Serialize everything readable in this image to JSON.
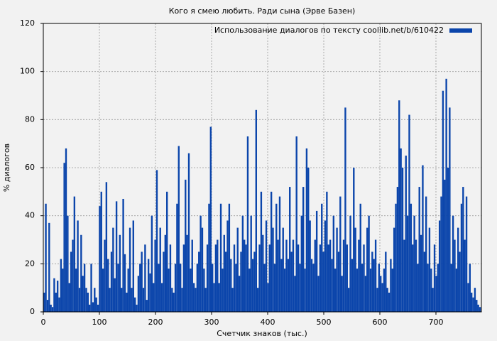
{
  "chart_data": {
    "type": "bar",
    "title": "Кого я смею любить. Ради сына (Эрве Базен)",
    "xlabel": "Счетчик знаков (тыс.)",
    "ylabel": "% диалогов",
    "xlim": [
      0,
      781
    ],
    "ylim": [
      0,
      120
    ],
    "xticks": [
      0,
      100,
      200,
      300,
      400,
      500,
      600,
      700
    ],
    "yticks": [
      0,
      20,
      40,
      60,
      80,
      100,
      120
    ],
    "grid": true,
    "legend": "upper right",
    "x": [
      0,
      3,
      6,
      9,
      12,
      15,
      18,
      21,
      24,
      27,
      30,
      33,
      36,
      39,
      42,
      45,
      48,
      51,
      54,
      57,
      60,
      63,
      66,
      69,
      72,
      75,
      78,
      81,
      84,
      87,
      90,
      93,
      96,
      99,
      102,
      105,
      108,
      111,
      114,
      117,
      120,
      123,
      126,
      129,
      132,
      135,
      138,
      141,
      144,
      147,
      150,
      153,
      156,
      159,
      162,
      165,
      168,
      171,
      174,
      177,
      180,
      183,
      186,
      189,
      192,
      195,
      198,
      201,
      204,
      207,
      210,
      213,
      216,
      219,
      222,
      225,
      228,
      231,
      234,
      237,
      240,
      243,
      246,
      249,
      252,
      255,
      258,
      261,
      264,
      267,
      270,
      273,
      276,
      279,
      282,
      285,
      288,
      291,
      294,
      297,
      300,
      303,
      306,
      309,
      312,
      315,
      318,
      321,
      324,
      327,
      330,
      333,
      336,
      339,
      342,
      345,
      348,
      351,
      354,
      357,
      360,
      363,
      366,
      369,
      372,
      375,
      378,
      381,
      384,
      387,
      390,
      393,
      396,
      399,
      402,
      405,
      408,
      411,
      414,
      417,
      420,
      423,
      426,
      429,
      432,
      435,
      438,
      441,
      444,
      447,
      450,
      453,
      456,
      459,
      462,
      465,
      468,
      471,
      474,
      477,
      480,
      483,
      486,
      489,
      492,
      495,
      498,
      501,
      504,
      507,
      510,
      513,
      516,
      519,
      522,
      525,
      528,
      531,
      534,
      537,
      540,
      543,
      546,
      549,
      552,
      555,
      558,
      561,
      564,
      567,
      570,
      573,
      576,
      579,
      582,
      585,
      588,
      591,
      594,
      597,
      600,
      603,
      606,
      609,
      612,
      615,
      618,
      621,
      624,
      627,
      630,
      633,
      636,
      639,
      642,
      645,
      648,
      651,
      654,
      657,
      660,
      663,
      666,
      669,
      672,
      675,
      678,
      681,
      684,
      687,
      690,
      693,
      696,
      699,
      702,
      705,
      708,
      711,
      714,
      717,
      720,
      723,
      726,
      729,
      732,
      735,
      738,
      741,
      744,
      747,
      750,
      753,
      756,
      759,
      762,
      765,
      768,
      771,
      774,
      777
    ],
    "series": [
      {
        "name": "Использование диалогов по тексту coollib.net/b/610422",
        "color": "#0b45ab",
        "values": [
          8,
          45,
          5,
          37,
          3,
          2,
          14,
          8,
          13,
          6,
          22,
          18,
          62,
          68,
          40,
          12,
          25,
          30,
          48,
          18,
          38,
          10,
          32,
          15,
          20,
          10,
          8,
          3,
          20,
          4,
          10,
          6,
          3,
          44,
          50,
          18,
          30,
          54,
          22,
          10,
          25,
          35,
          14,
          46,
          20,
          32,
          10,
          47,
          24,
          8,
          18,
          35,
          10,
          38,
          6,
          3,
          15,
          20,
          25,
          10,
          28,
          5,
          22,
          16,
          40,
          12,
          30,
          59,
          20,
          35,
          12,
          25,
          32,
          50,
          18,
          28,
          10,
          8,
          20,
          45,
          69,
          20,
          10,
          28,
          55,
          32,
          66,
          18,
          30,
          12,
          10,
          20,
          25,
          40,
          35,
          18,
          10,
          28,
          45,
          77,
          20,
          12,
          28,
          30,
          12,
          45,
          18,
          32,
          25,
          38,
          45,
          22,
          10,
          28,
          20,
          35,
          15,
          25,
          40,
          30,
          28,
          73,
          18,
          40,
          22,
          25,
          84,
          10,
          28,
          50,
          32,
          20,
          38,
          12,
          28,
          50,
          35,
          20,
          45,
          30,
          48,
          22,
          35,
          18,
          30,
          22,
          52,
          25,
          30,
          15,
          73,
          28,
          20,
          40,
          52,
          18,
          68,
          60,
          38,
          22,
          20,
          30,
          42,
          15,
          28,
          45,
          25,
          38,
          50,
          28,
          30,
          22,
          40,
          18,
          35,
          25,
          48,
          15,
          30,
          85,
          28,
          10,
          40,
          22,
          60,
          35,
          18,
          30,
          45,
          20,
          28,
          15,
          35,
          40,
          18,
          25,
          22,
          30,
          10,
          20,
          15,
          12,
          18,
          25,
          10,
          8,
          22,
          18,
          35,
          45,
          52,
          88,
          68,
          60,
          30,
          65,
          40,
          82,
          45,
          28,
          40,
          30,
          20,
          52,
          32,
          61,
          25,
          48,
          20,
          35,
          18,
          10,
          28,
          15,
          20,
          38,
          48,
          92,
          55,
          97,
          60,
          85,
          20,
          40,
          30,
          18,
          35,
          25,
          45,
          52,
          30,
          48,
          12,
          20,
          8,
          6,
          10,
          5,
          3,
          2
        ]
      }
    ]
  }
}
